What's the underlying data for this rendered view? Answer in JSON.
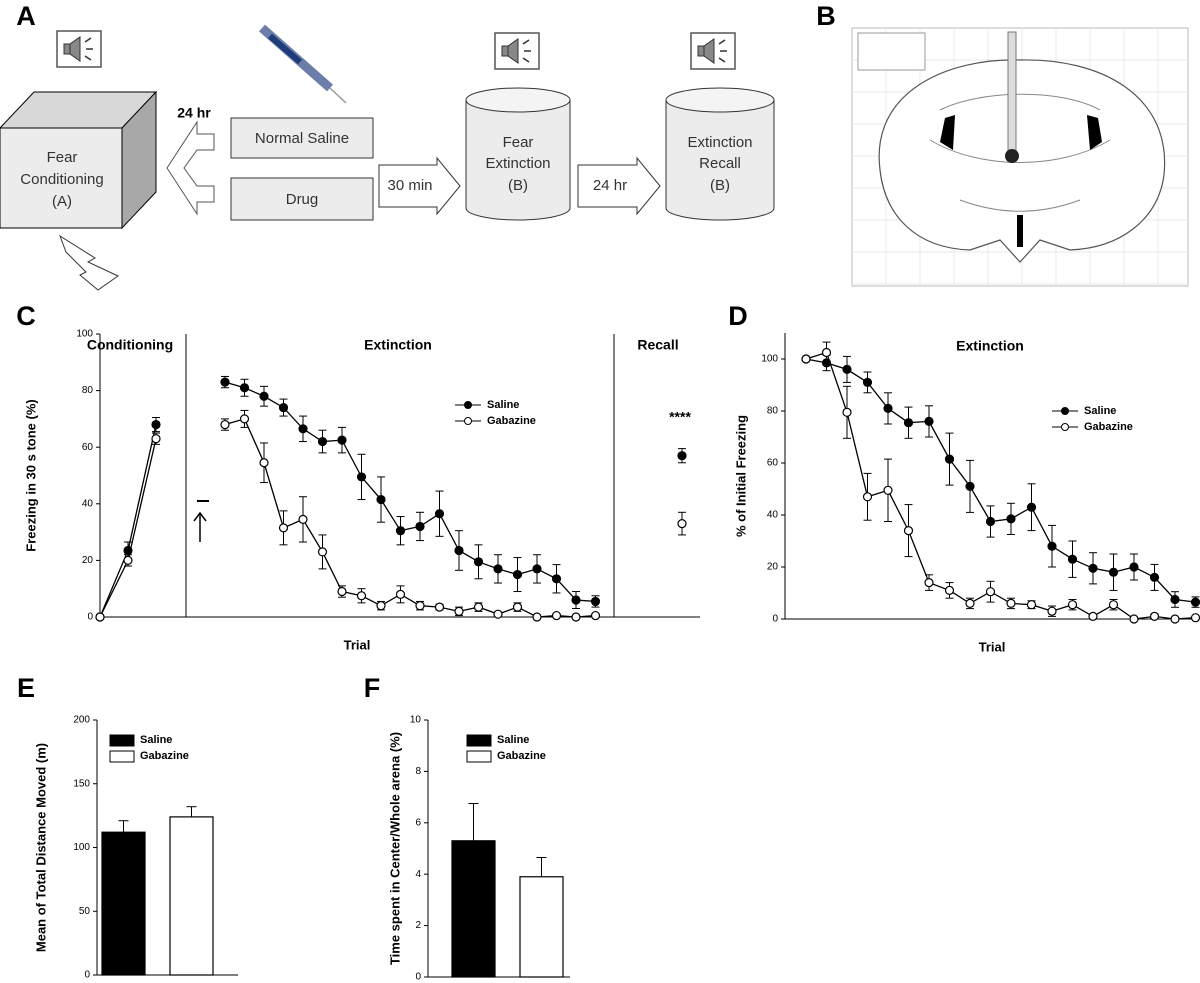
{
  "panel_labels": [
    "A",
    "B",
    "C",
    "D",
    "E",
    "F"
  ],
  "diagram": {
    "conditioning": [
      "Fear",
      "Conditioning",
      "(A)"
    ],
    "delay_1": "24 hr",
    "treatments": [
      "Normal Saline",
      "Drug"
    ],
    "delay_2": "30 min",
    "extinction": [
      "Fear",
      "Extinction",
      "(B)"
    ],
    "delay_3": "24 hr",
    "recall": [
      "Extinction",
      "Recall",
      "(B)"
    ]
  },
  "chart_data": [
    {
      "type": "line",
      "sections": [
        "Conditioning",
        "Extinction",
        "Recall"
      ],
      "ylabel": "Freezing in 30 s tone (%)",
      "xlabel": "Trial",
      "ylim": [
        0,
        100
      ],
      "yticks": [
        0,
        20,
        40,
        60,
        80,
        100
      ],
      "annotation": "****",
      "series": [
        {
          "name": "Saline",
          "color": "#000000",
          "values": [
            [
              0,
              23.5,
              68
            ],
            [
              83,
              81,
              78,
              74,
              66.5,
              62,
              62.5,
              49.5,
              41.5,
              30.5,
              32,
              36.5,
              23.5,
              19.5,
              17,
              15,
              17,
              13.5,
              6,
              5.5
            ],
            [
              57
            ]
          ],
          "errors": [
            [
              0.5,
              3,
              2.5
            ],
            [
              2,
              3,
              3.5,
              3,
              4.5,
              4,
              4.5,
              8,
              8,
              5,
              5,
              8,
              7,
              6,
              5,
              6,
              5,
              5,
              3,
              2
            ],
            [
              2.5
            ]
          ]
        },
        {
          "name": "Gabazine",
          "color": "#ffffff",
          "values": [
            [
              0,
              20,
              63
            ],
            [
              68,
              70,
              54.5,
              31.5,
              34.5,
              23,
              9,
              7.5,
              4,
              8,
              4,
              3.5,
              2,
              3.5,
              1,
              3.5,
              0,
              0.5,
              0,
              0.5
            ],
            [
              33
            ]
          ],
          "errors": [
            [
              0.5,
              2,
              2
            ],
            [
              2,
              3,
              7,
              6,
              8,
              6,
              2,
              2.5,
              1.5,
              3,
              1.5,
              1,
              1.5,
              1.5,
              0.5,
              1.5,
              0,
              0.5,
              0,
              0.5
            ],
            [
              4
            ]
          ]
        }
      ]
    },
    {
      "type": "line",
      "title": "Extinction",
      "ylabel": "% of Initial Freezing",
      "xlabel": "Trial",
      "ylim": [
        0,
        110
      ],
      "yticks": [
        0,
        20,
        40,
        60,
        80,
        100
      ],
      "series": [
        {
          "name": "Saline",
          "color": "#000000",
          "values": [
            100,
            98.5,
            96,
            91,
            81,
            75.5,
            76,
            61.5,
            51,
            37.5,
            38.5,
            43,
            28,
            23,
            19.5,
            18,
            20,
            16,
            7.5,
            6.5
          ],
          "errors": [
            0,
            3,
            5,
            4,
            6,
            6,
            6,
            10,
            10,
            6,
            6,
            9,
            8,
            7,
            6,
            7,
            5,
            5,
            3,
            2
          ]
        },
        {
          "name": "Gabazine",
          "color": "#ffffff",
          "values": [
            100,
            102.5,
            79.5,
            47,
            49.5,
            34,
            14,
            11,
            6,
            10.5,
            6,
            5.5,
            3,
            5.5,
            1,
            5.5,
            0,
            1,
            0,
            0.5
          ],
          "errors": [
            0,
            4,
            10,
            9,
            12,
            10,
            3,
            3,
            2,
            4,
            2,
            1.5,
            2,
            2,
            0.5,
            2,
            0,
            1,
            0,
            0.5
          ]
        }
      ]
    },
    {
      "type": "bar",
      "ylabel": "Mean of Total Distance Moved (m)",
      "ylim": [
        0,
        200
      ],
      "yticks": [
        0,
        50,
        100,
        150,
        200
      ],
      "series": [
        {
          "name": "Saline",
          "color": "#000000",
          "values": [
            112
          ],
          "errors": [
            9
          ]
        },
        {
          "name": "Gabazine",
          "color": "#ffffff",
          "values": [
            124
          ],
          "errors": [
            8
          ]
        }
      ]
    },
    {
      "type": "bar",
      "ylabel": "Time spent in Center/Whole arena (%)",
      "ylim": [
        0,
        10
      ],
      "yticks": [
        0,
        2,
        4,
        6,
        8,
        10
      ],
      "series": [
        {
          "name": "Saline",
          "color": "#000000",
          "values": [
            5.3
          ],
          "errors": [
            1.45
          ]
        },
        {
          "name": "Gabazine",
          "color": "#ffffff",
          "values": [
            3.9
          ],
          "errors": [
            0.75
          ]
        }
      ]
    }
  ]
}
